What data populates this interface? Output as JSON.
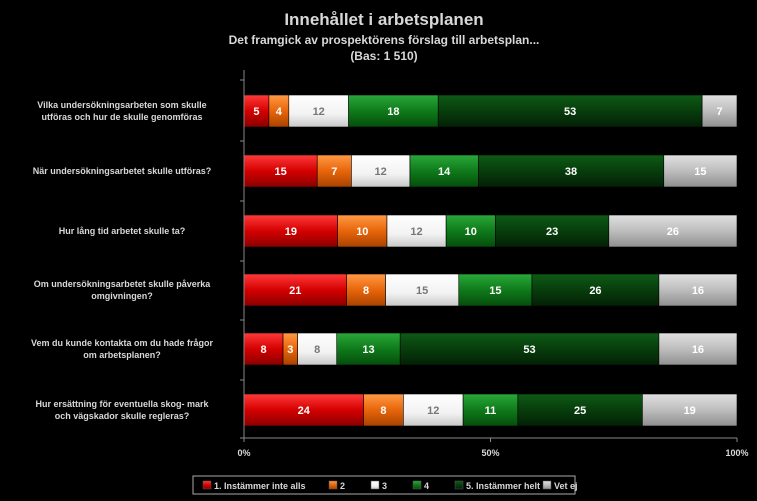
{
  "chart_data": {
    "type": "bar",
    "orientation": "horizontal",
    "stacked": "percent",
    "title": "Innehållet i arbetsplanen",
    "subtitle": "Det framgick av prospektörens förslag till arbetsplan...",
    "note": "(Bas: 1 510)",
    "categories": [
      "Vilka undersökningsarbeten som skulle utföras och hur de skulle genomföras",
      "När undersökningsarbetet skulle utföras?",
      "Hur lång tid arbetet skulle ta?",
      "Om undersökningsarbetet skulle påverka omgivningen?",
      "Vem du kunde kontakta om du hade frågor om arbetsplanen?",
      "Hur ersättning för eventuella skog- mark och vägskador skulle regleras?"
    ],
    "series": [
      {
        "name": "1. Instämmer inte alls",
        "color": "#d40000",
        "values": [
          5,
          15,
          19,
          21,
          8,
          24
        ]
      },
      {
        "name": "2",
        "color": "#e8650a",
        "values": [
          4,
          7,
          10,
          8,
          3,
          8
        ]
      },
      {
        "name": "3",
        "color": "#ffffff",
        "values": [
          12,
          12,
          12,
          15,
          8,
          12
        ]
      },
      {
        "name": "4",
        "color": "#0f7a1a",
        "values": [
          18,
          14,
          10,
          15,
          13,
          11
        ]
      },
      {
        "name": "5. Instämmer helt",
        "color": "#073d0c",
        "values": [
          53,
          38,
          23,
          26,
          53,
          25
        ]
      },
      {
        "name": "Vet ej",
        "color": "#bdbdbd",
        "values": [
          7,
          15,
          26,
          16,
          16,
          19
        ]
      }
    ],
    "xlim": [
      0,
      100
    ],
    "x_ticks": [
      "0%",
      "50%",
      "100%"
    ],
    "legend_position": "bottom",
    "grid": false
  }
}
